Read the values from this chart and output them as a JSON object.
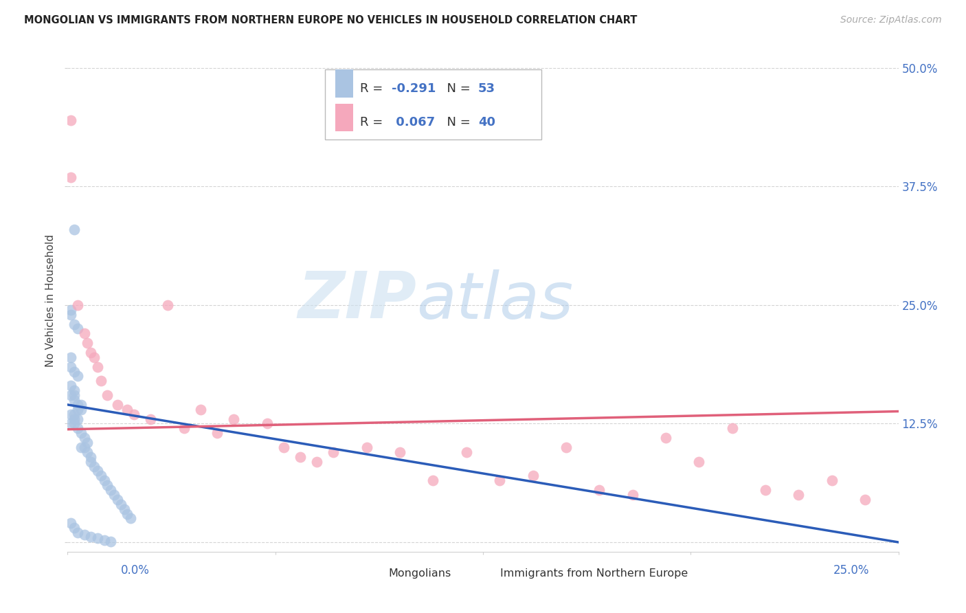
{
  "title": "MONGOLIAN VS IMMIGRANTS FROM NORTHERN EUROPE NO VEHICLES IN HOUSEHOLD CORRELATION CHART",
  "source": "Source: ZipAtlas.com",
  "ylabel": "No Vehicles in Household",
  "xmin": 0.0,
  "xmax": 0.25,
  "ymin": -0.01,
  "ymax": 0.52,
  "r_mongolian": -0.291,
  "n_mongolian": 53,
  "r_northern_europe": 0.067,
  "n_northern_europe": 40,
  "mongolian_color": "#aac4e2",
  "northern_europe_color": "#f5a8bc",
  "mongolian_line_color": "#2b5cb8",
  "northern_europe_line_color": "#e0607a",
  "background_color": "#ffffff",
  "grid_color": "#d0d0d0",
  "title_color": "#222222",
  "source_color": "#aaaaaa",
  "axis_label_color": "#4472c4",
  "watermark_color": "#ccdff5",
  "mongolian_x": [
    0.002,
    0.001,
    0.001,
    0.002,
    0.003,
    0.001,
    0.001,
    0.002,
    0.003,
    0.001,
    0.002,
    0.001,
    0.002,
    0.002,
    0.003,
    0.004,
    0.003,
    0.004,
    0.001,
    0.002,
    0.003,
    0.002,
    0.001,
    0.002,
    0.003,
    0.004,
    0.005,
    0.006,
    0.004,
    0.005,
    0.006,
    0.007,
    0.007,
    0.008,
    0.009,
    0.01,
    0.011,
    0.012,
    0.013,
    0.014,
    0.015,
    0.016,
    0.017,
    0.018,
    0.019,
    0.001,
    0.002,
    0.003,
    0.005,
    0.007,
    0.009,
    0.011,
    0.013
  ],
  "mongolian_y": [
    0.33,
    0.245,
    0.24,
    0.23,
    0.225,
    0.195,
    0.185,
    0.18,
    0.175,
    0.165,
    0.16,
    0.155,
    0.155,
    0.15,
    0.145,
    0.145,
    0.14,
    0.14,
    0.135,
    0.135,
    0.13,
    0.13,
    0.125,
    0.125,
    0.12,
    0.115,
    0.11,
    0.105,
    0.1,
    0.1,
    0.095,
    0.09,
    0.085,
    0.08,
    0.075,
    0.07,
    0.065,
    0.06,
    0.055,
    0.05,
    0.045,
    0.04,
    0.035,
    0.03,
    0.025,
    0.02,
    0.015,
    0.01,
    0.008,
    0.006,
    0.004,
    0.002,
    0.001
  ],
  "northern_europe_x": [
    0.001,
    0.001,
    0.003,
    0.005,
    0.006,
    0.007,
    0.008,
    0.009,
    0.01,
    0.012,
    0.015,
    0.018,
    0.02,
    0.025,
    0.03,
    0.035,
    0.04,
    0.045,
    0.05,
    0.06,
    0.065,
    0.07,
    0.075,
    0.08,
    0.09,
    0.1,
    0.11,
    0.12,
    0.13,
    0.14,
    0.15,
    0.16,
    0.17,
    0.18,
    0.19,
    0.2,
    0.21,
    0.22,
    0.23,
    0.24
  ],
  "northern_europe_y": [
    0.445,
    0.385,
    0.25,
    0.22,
    0.21,
    0.2,
    0.195,
    0.185,
    0.17,
    0.155,
    0.145,
    0.14,
    0.135,
    0.13,
    0.25,
    0.12,
    0.14,
    0.115,
    0.13,
    0.125,
    0.1,
    0.09,
    0.085,
    0.095,
    0.1,
    0.095,
    0.065,
    0.095,
    0.065,
    0.07,
    0.1,
    0.055,
    0.05,
    0.11,
    0.085,
    0.12,
    0.055,
    0.05,
    0.065,
    0.045
  ],
  "mong_line_x0": 0.0,
  "mong_line_x1": 0.25,
  "mong_line_y0": 0.145,
  "mong_line_y1": 0.0,
  "ne_line_x0": 0.0,
  "ne_line_x1": 0.25,
  "ne_line_y0": 0.119,
  "ne_line_y1": 0.138
}
